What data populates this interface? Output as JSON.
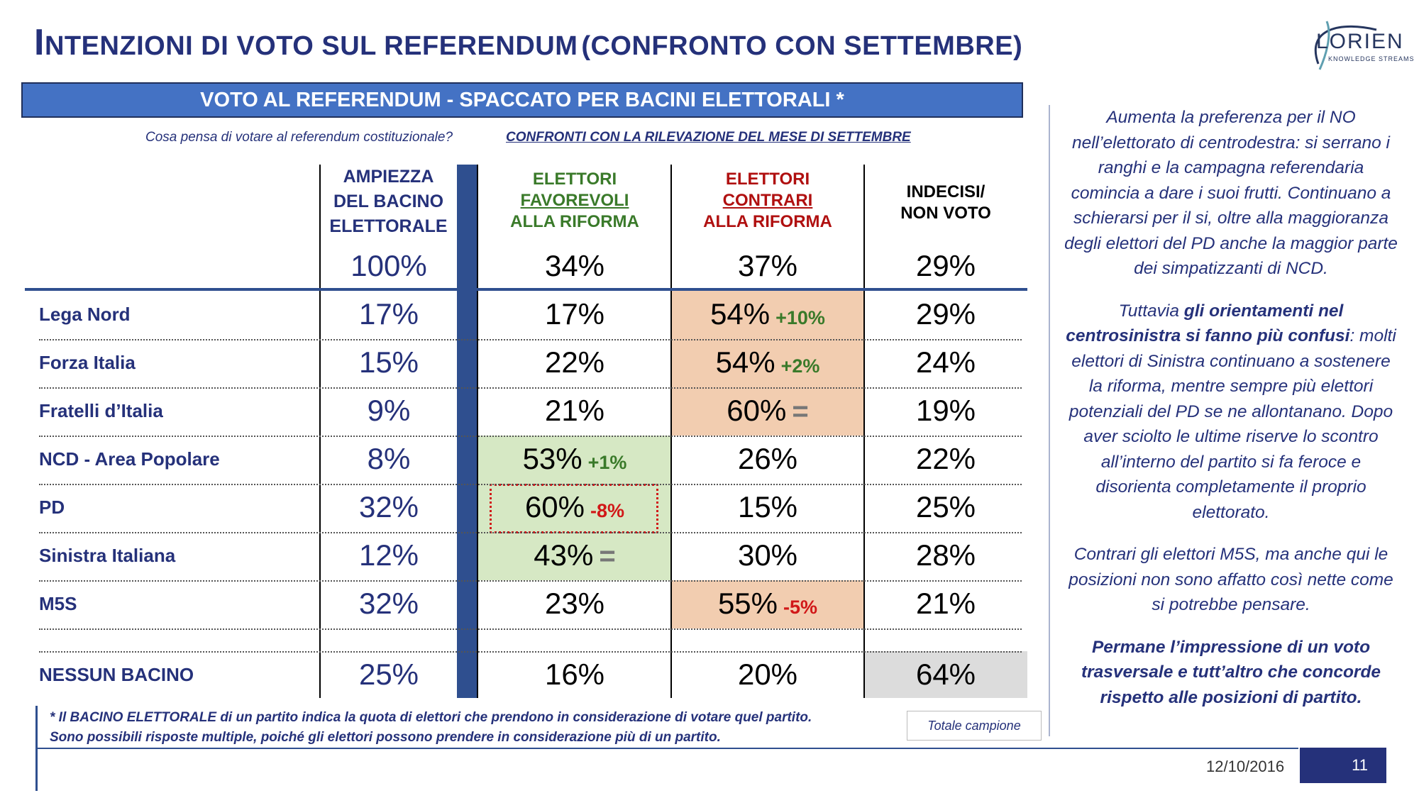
{
  "title": {
    "first_letter": "I",
    "main": "NTENZIONI DI VOTO SUL REFERENDUM",
    "paren": "(CONFRONTO CON SETTEMBRE)"
  },
  "logo": {
    "name": "LORIEN",
    "tagline": "KNOWLEDGE STREAMS"
  },
  "banner": "VOTO AL REFERENDUM - SPACCATO PER BACINI ELETTORALI *",
  "subtitle_left": "Cosa pensa di votare al referendum costituzionale?",
  "subtitle_right": "CONFRONTI CON LA RILEVAZIONE DEL MESE DI SETTEMBRE",
  "headers": {
    "bacino": [
      "AMPIEZZA",
      "DEL BACINO",
      "ELETTORALE"
    ],
    "favorevoli": [
      "ELETTORI",
      "FAVOREVOLI",
      "ALLA RIFORMA"
    ],
    "contrari": [
      "ELETTORI",
      "CONTRARI",
      "ALLA RIFORMA"
    ],
    "indecisi": [
      "INDECISI/",
      "NON VOTO"
    ]
  },
  "totals": {
    "bacino": "100%",
    "favorevoli": "34%",
    "contrari": "37%",
    "indecisi": "29%"
  },
  "rows": [
    {
      "label": "Lega Nord",
      "bacino": "17%",
      "fav": "17%",
      "fav_delta": "",
      "con": "54%",
      "con_delta": "+10%",
      "ind": "29%"
    },
    {
      "label": "Forza Italia",
      "bacino": "15%",
      "fav": "22%",
      "fav_delta": "",
      "con": "54%",
      "con_delta": "+2%",
      "ind": "24%"
    },
    {
      "label": "Fratelli d’Italia",
      "bacino": "9%",
      "fav": "21%",
      "fav_delta": "",
      "con": "60%",
      "con_delta": "=",
      "ind": "19%"
    },
    {
      "label": "NCD - Area Popolare",
      "bacino": "8%",
      "fav": "53%",
      "fav_delta": "+1%",
      "con": "26%",
      "con_delta": "",
      "ind": "22%"
    },
    {
      "label": "PD",
      "bacino": "32%",
      "fav": "60%",
      "fav_delta": "-8%",
      "con": "15%",
      "con_delta": "",
      "ind": "25%"
    },
    {
      "label": "Sinistra Italiana",
      "bacino": "12%",
      "fav": "43%",
      "fav_delta": "=",
      "con": "30%",
      "con_delta": "",
      "ind": "28%"
    },
    {
      "label": "M5S",
      "bacino": "32%",
      "fav": "23%",
      "fav_delta": "",
      "con": "55%",
      "con_delta": "-5%",
      "ind": "21%"
    }
  ],
  "nessun": {
    "label": "NESSUN BACINO",
    "bacino": "25%",
    "fav": "16%",
    "con": "20%",
    "ind": "64%"
  },
  "footnote": [
    "* Il BACINO ELETTORALE di un partito indica la quota di elettori che prendono in considerazione di votare quel partito.",
    "Sono possibili risposte multiple, poiché gli elettori possono prendere in considerazione più di un partito."
  ],
  "total_box": "Totale campione",
  "side": {
    "p1": "Aumenta la preferenza per il NO nell’elettorato di centrodestra: si serrano i ranghi e la campagna referendaria comincia a dare i suoi frutti. Continuano a schierarsi per il si, oltre alla maggioranza degli elettori del PD anche la maggior parte dei simpatizzanti di NCD.",
    "p2_a": "Tuttavia ",
    "p2_b": "gli orientamenti nel centrosinistra si fanno più confusi",
    "p2_c": ": molti elettori di Sinistra continuano a sostenere la riforma, mentre sempre più elettori potenziali del PD se ne allontanano. Dopo aver sciolto le ultime riserve lo scontro all’interno del partito si fa feroce e disorienta completamente il proprio elettorato.",
    "p3": "Contrari gli elettori M5S, ma anche qui le posizioni non sono affatto così nette come si potrebbe pensare.",
    "p4": "Permane l’impressione di un voto trasversale e tutt’altro che concorde rispetto alle posizioni di partito."
  },
  "date": "12/10/2016",
  "page": "11",
  "colors": {
    "navy": "#25317a",
    "banner": "#4472c4",
    "green_text": "#3a7a2a",
    "red_text": "#b01010",
    "green_fill": "#d6e8c4",
    "orange_fill": "#f2cdb0",
    "gray_fill": "#dcdcdc"
  }
}
